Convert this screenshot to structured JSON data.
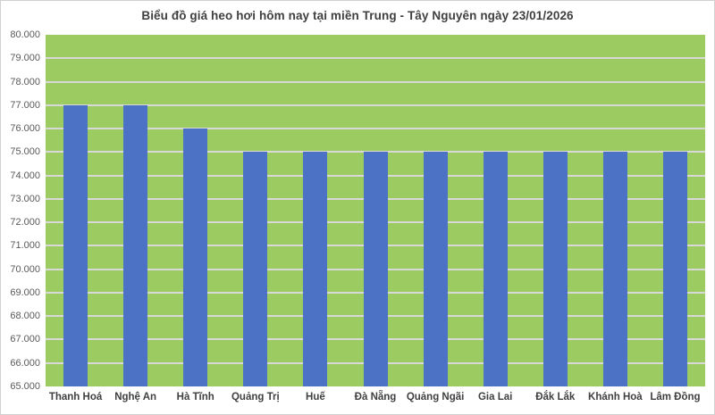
{
  "chart_data": {
    "type": "bar",
    "title": "Biểu đồ giá heo hơi hôm nay tại miền Trung - Tây Nguyên ngày 23/01/2026",
    "categories": [
      "Thanh Hoá",
      "Nghệ An",
      "Hà Tĩnh",
      "Quảng Trị",
      "Huế",
      "Đà Nẵng",
      "Quảng Ngãi",
      "Gia Lai",
      "Đắk Lắk",
      "Khánh Hoà",
      "Lâm Đồng"
    ],
    "values": [
      77000,
      77000,
      76000,
      75000,
      75000,
      75000,
      75000,
      75000,
      75000,
      75000,
      75000
    ],
    "xlabel": "",
    "ylabel": "",
    "ylim": [
      65000,
      80000
    ],
    "ytick_step": 1000,
    "yticks": [
      {
        "value": 80000,
        "label": "80.000"
      },
      {
        "value": 79000,
        "label": "79.000"
      },
      {
        "value": 78000,
        "label": "78.000"
      },
      {
        "value": 77000,
        "label": "77.000"
      },
      {
        "value": 76000,
        "label": "76.000"
      },
      {
        "value": 75000,
        "label": "75.000"
      },
      {
        "value": 74000,
        "label": "74.000"
      },
      {
        "value": 73000,
        "label": "73.000"
      },
      {
        "value": 72000,
        "label": "72.000"
      },
      {
        "value": 71000,
        "label": "71.000"
      },
      {
        "value": 70000,
        "label": "70.000"
      },
      {
        "value": 69000,
        "label": "69.000"
      },
      {
        "value": 68000,
        "label": "68.000"
      },
      {
        "value": 67000,
        "label": "67.000"
      },
      {
        "value": 66000,
        "label": "66.000"
      },
      {
        "value": 65000,
        "label": "65.000"
      }
    ],
    "grid": "horizontal",
    "legend": "none",
    "colors": {
      "bar": "#4b72c4",
      "plot_background": "#9ccb62",
      "gridline": "#d8d8d8",
      "title_text": "#3f3f3f",
      "axis_tick_text": "#595959",
      "category_text": "#404040",
      "chart_border": "#d0d0d0",
      "background": "#ffffff"
    }
  }
}
